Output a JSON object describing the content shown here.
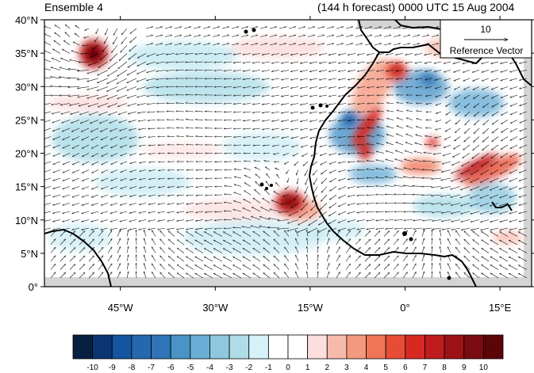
{
  "header": {
    "title_left": "Ensemble 4",
    "title_right": "(144 h forecast) 0000 UTC 15 Aug 2004"
  },
  "axes": {
    "lon_ticks": [
      {
        "lon": -45,
        "label": "45°W"
      },
      {
        "lon": -30,
        "label": "30°W"
      },
      {
        "lon": -15,
        "label": "15°W"
      },
      {
        "lon": 0,
        "label": "0°"
      },
      {
        "lon": 15,
        "label": "15°E"
      }
    ],
    "lat_ticks": [
      {
        "lat": 0,
        "label": "0°"
      },
      {
        "lat": 5,
        "label": "5°N"
      },
      {
        "lat": 10,
        "label": "10°N"
      },
      {
        "lat": 15,
        "label": "15°N"
      },
      {
        "lat": 20,
        "label": "20°N"
      },
      {
        "lat": 25,
        "label": "25°N"
      },
      {
        "lat": 30,
        "label": "30°N"
      },
      {
        "lat": 35,
        "label": "35°N"
      },
      {
        "lat": 40,
        "label": "40°N"
      }
    ],
    "lon_range": [
      -57,
      20
    ],
    "lat_range": [
      0,
      40
    ]
  },
  "reference_vector": {
    "magnitude": "10",
    "label": "Reference Vector"
  },
  "colorbar": {
    "labels": [
      "-10",
      "-9",
      "-8",
      "-7",
      "-6",
      "-5",
      "-4",
      "-3",
      "-2",
      "-1",
      "0",
      "1",
      "2",
      "3",
      "4",
      "5",
      "6",
      "7",
      "8",
      "9",
      "10"
    ],
    "colors": [
      "#08203f",
      "#0b3572",
      "#1454a0",
      "#2468ad",
      "#2e74b6",
      "#4a93c6",
      "#6aaed6",
      "#8fc8de",
      "#aedde8",
      "#d7f1f8",
      "#ffffff",
      "#ffffff",
      "#fcdede",
      "#f8b9ad",
      "#f4987f",
      "#ef7558",
      "#e74d35",
      "#d72922",
      "#c01b1d",
      "#9c1217",
      "#7a0b10",
      "#5c0508"
    ]
  },
  "colors": {
    "land_outside": "#d4d4d4",
    "coast": "#000000"
  }
}
